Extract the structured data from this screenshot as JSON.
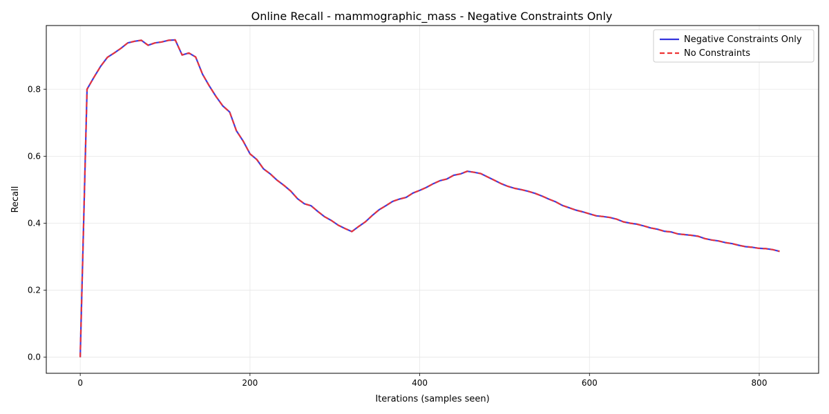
{
  "chart_data": {
    "type": "line",
    "title": "Online Recall - mammographic_mass - Negative Constraints Only",
    "xlabel": "Iterations (samples seen)",
    "ylabel": "Recall",
    "xlim": [
      -40,
      870
    ],
    "ylim": [
      -0.048,
      0.99
    ],
    "xticks": [
      0,
      200,
      400,
      600,
      800
    ],
    "xtick_labels": [
      "0",
      "200",
      "400",
      "600",
      "800"
    ],
    "yticks": [
      0.0,
      0.2,
      0.4,
      0.6,
      0.8
    ],
    "ytick_labels": [
      "0.0",
      "0.2",
      "0.4",
      "0.6",
      "0.8"
    ],
    "grid": true,
    "legend_position": "top-right",
    "x": [
      0,
      8,
      16,
      24,
      32,
      40,
      48,
      56,
      64,
      72,
      80,
      88,
      96,
      104,
      112,
      120,
      128,
      136,
      144,
      152,
      160,
      168,
      176,
      184,
      192,
      200,
      208,
      216,
      224,
      232,
      240,
      248,
      256,
      264,
      272,
      280,
      288,
      296,
      304,
      312,
      320,
      328,
      336,
      344,
      352,
      360,
      368,
      376,
      384,
      392,
      400,
      408,
      416,
      424,
      432,
      440,
      448,
      456,
      464,
      472,
      480,
      488,
      496,
      504,
      512,
      520,
      528,
      536,
      544,
      552,
      560,
      568,
      576,
      584,
      592,
      600,
      608,
      616,
      624,
      632,
      640,
      648,
      656,
      664,
      672,
      680,
      688,
      696,
      704,
      712,
      720,
      728,
      736,
      744,
      752,
      760,
      768,
      776,
      784,
      792,
      800,
      808,
      816,
      824
    ],
    "series": [
      {
        "name": "Negative Constraints Only",
        "color": "#3333dd",
        "style": "solid",
        "values": [
          0.0,
          0.8,
          0.835,
          0.868,
          0.895,
          0.908,
          0.922,
          0.938,
          0.943,
          0.946,
          0.931,
          0.938,
          0.941,
          0.946,
          0.947,
          0.902,
          0.908,
          0.896,
          0.845,
          0.81,
          0.778,
          0.75,
          0.732,
          0.676,
          0.645,
          0.607,
          0.59,
          0.562,
          0.547,
          0.528,
          0.513,
          0.496,
          0.473,
          0.458,
          0.452,
          0.435,
          0.419,
          0.408,
          0.394,
          0.384,
          0.375,
          0.39,
          0.404,
          0.423,
          0.44,
          0.452,
          0.465,
          0.472,
          0.477,
          0.49,
          0.498,
          0.507,
          0.518,
          0.527,
          0.532,
          0.543,
          0.547,
          0.555,
          0.552,
          0.548,
          0.538,
          0.528,
          0.518,
          0.51,
          0.504,
          0.5,
          0.495,
          0.489,
          0.481,
          0.472,
          0.464,
          0.453,
          0.446,
          0.439,
          0.434,
          0.428,
          0.422,
          0.42,
          0.417,
          0.412,
          0.404,
          0.4,
          0.397,
          0.392,
          0.386,
          0.382,
          0.376,
          0.374,
          0.368,
          0.366,
          0.364,
          0.361,
          0.354,
          0.35,
          0.347,
          0.342,
          0.339,
          0.334,
          0.33,
          0.328,
          0.325,
          0.324,
          0.321,
          0.316
        ]
      },
      {
        "name": "No Constraints",
        "color": "#ee3333",
        "style": "dashed",
        "values": [
          0.0,
          0.8,
          0.835,
          0.868,
          0.895,
          0.908,
          0.922,
          0.938,
          0.943,
          0.946,
          0.931,
          0.938,
          0.941,
          0.946,
          0.947,
          0.902,
          0.908,
          0.896,
          0.845,
          0.81,
          0.778,
          0.75,
          0.732,
          0.676,
          0.645,
          0.607,
          0.59,
          0.562,
          0.547,
          0.528,
          0.513,
          0.496,
          0.473,
          0.458,
          0.452,
          0.435,
          0.419,
          0.408,
          0.394,
          0.384,
          0.375,
          0.39,
          0.404,
          0.423,
          0.44,
          0.452,
          0.465,
          0.472,
          0.477,
          0.49,
          0.498,
          0.507,
          0.518,
          0.527,
          0.532,
          0.543,
          0.547,
          0.555,
          0.552,
          0.548,
          0.538,
          0.528,
          0.518,
          0.51,
          0.504,
          0.5,
          0.495,
          0.489,
          0.481,
          0.472,
          0.464,
          0.453,
          0.446,
          0.439,
          0.434,
          0.428,
          0.422,
          0.42,
          0.417,
          0.412,
          0.404,
          0.4,
          0.397,
          0.392,
          0.386,
          0.382,
          0.376,
          0.374,
          0.368,
          0.366,
          0.364,
          0.361,
          0.354,
          0.35,
          0.347,
          0.342,
          0.339,
          0.334,
          0.33,
          0.328,
          0.325,
          0.324,
          0.321,
          0.316
        ]
      }
    ]
  }
}
